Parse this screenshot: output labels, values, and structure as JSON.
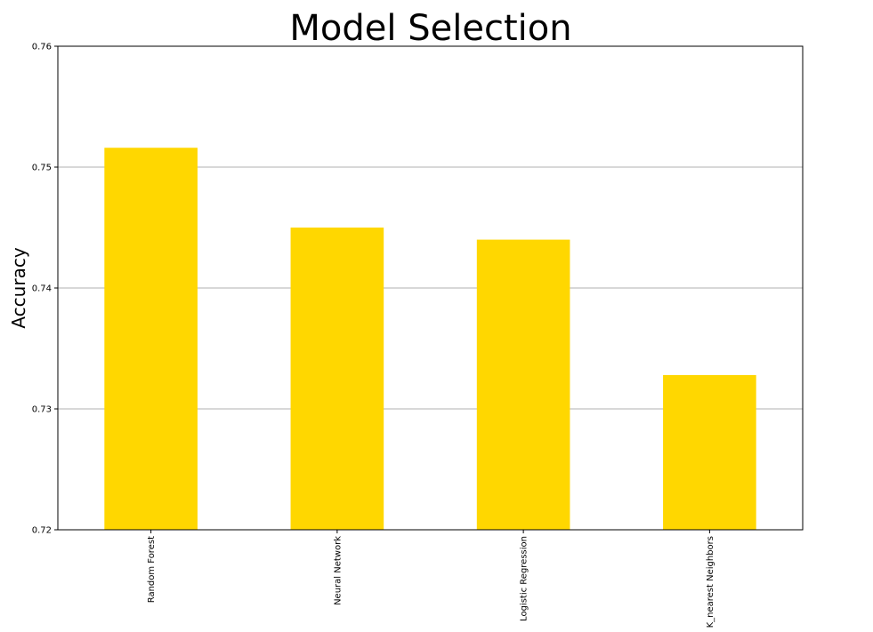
{
  "chart_data": {
    "type": "bar",
    "title": "Model Selection",
    "xlabel": "",
    "ylabel": "Accuracy",
    "categories": [
      "Random Forest",
      "Neural Network",
      "Logistic Regression",
      "K_nearest Neighbors"
    ],
    "values": [
      0.7516,
      0.745,
      0.744,
      0.7328
    ],
    "ylim": [
      0.72,
      0.76
    ],
    "yticks": [
      "0.72",
      "0.73",
      "0.74",
      "0.75",
      "0.76"
    ],
    "grid": "y",
    "bar_color": "#FFD700",
    "grid_color": "#b0b0b0"
  }
}
